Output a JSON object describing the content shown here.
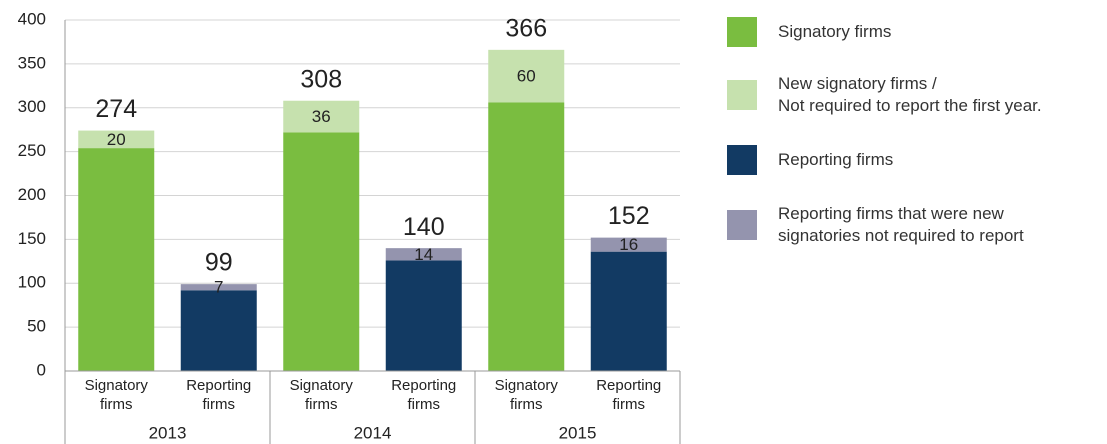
{
  "chart_data": {
    "type": "stacked_bar",
    "groups": [
      "2013",
      "2014",
      "2015"
    ],
    "categories": [
      "Signatory firms",
      "Reporting firms",
      "Signatory firms",
      "Reporting firms",
      "Signatory firms",
      "Reporting firms"
    ],
    "series": [
      {
        "name": "Signatory firms",
        "color": "#7abd40",
        "values": [
          254,
          null,
          272,
          null,
          306,
          null
        ]
      },
      {
        "name": "New signatory firms /\nNot required to report the first year.",
        "color": "#c6e1ae",
        "values": [
          20,
          null,
          36,
          null,
          60,
          null
        ]
      },
      {
        "name": "Reporting firms",
        "color": "#123a63",
        "values": [
          null,
          92,
          null,
          126,
          null,
          136
        ]
      },
      {
        "name": "Reporting firms that were new\nsignatories not required to report",
        "color": "#9494ae",
        "values": [
          null,
          7,
          null,
          14,
          null,
          16
        ]
      }
    ],
    "totals": [
      274,
      99,
      308,
      140,
      366,
      152
    ],
    "ylim": [
      0,
      400
    ],
    "yticks": [
      0,
      50,
      100,
      150,
      200,
      250,
      300,
      350,
      400
    ],
    "grid": true
  }
}
